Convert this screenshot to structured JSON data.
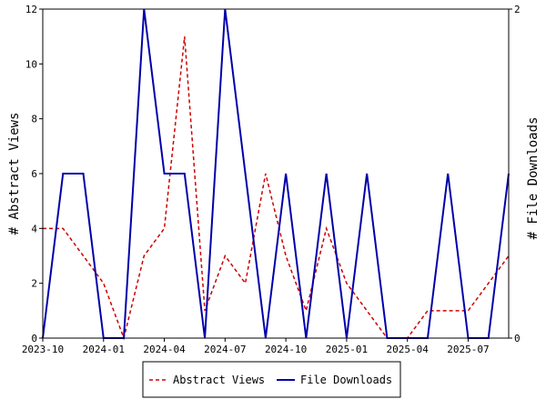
{
  "chart_data": {
    "type": "line",
    "x": [
      "2023-10",
      "2023-11",
      "2023-12",
      "2024-01",
      "2024-02",
      "2024-03",
      "2024-04",
      "2024-05",
      "2024-06",
      "2024-07",
      "2024-08",
      "2024-09",
      "2024-10",
      "2024-11",
      "2024-12",
      "2025-01",
      "2025-02",
      "2025-03",
      "2025-04",
      "2025-05",
      "2025-06",
      "2025-07",
      "2025-08",
      "2025-09"
    ],
    "x_ticks": [
      "2023-10",
      "2024-01",
      "2024-04",
      "2024-07",
      "2024-10",
      "2025-01",
      "2025-04",
      "2025-07"
    ],
    "ylabel": "# Abstract Views",
    "y2label": "# File Downloads",
    "ylim": [
      0,
      12
    ],
    "y_ticks": [
      0,
      2,
      4,
      6,
      8,
      10,
      12
    ],
    "y2lim": [
      0,
      2
    ],
    "y2_ticks": [
      0,
      2
    ],
    "legend_position": "bottom-center",
    "series": [
      {
        "name": "Abstract Views",
        "axis": "left",
        "color": "#cc0000",
        "style": "dashed",
        "values": [
          4,
          4,
          3,
          2,
          0,
          3,
          4,
          11,
          1,
          3,
          2,
          6,
          3,
          1,
          4,
          2,
          1,
          0,
          0,
          1,
          1,
          1,
          2,
          3
        ]
      },
      {
        "name": "File Downloads",
        "axis": "right",
        "color": "#0000aa",
        "style": "solid",
        "values": [
          0,
          1,
          1,
          0,
          0,
          2,
          1,
          1,
          0,
          2,
          1,
          0,
          1,
          0,
          1,
          0,
          1,
          0,
          0,
          0,
          1,
          0,
          0,
          1
        ]
      }
    ]
  }
}
